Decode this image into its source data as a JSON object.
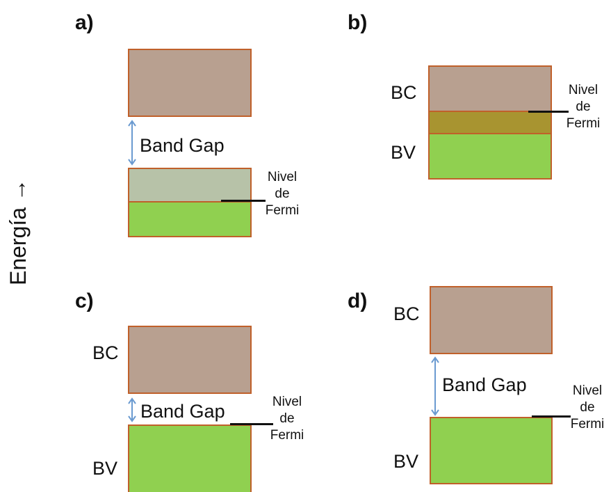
{
  "axis": {
    "label": "Energía →"
  },
  "panels": {
    "a": {
      "label": "a)",
      "band_gap": "Band Gap",
      "fermi": [
        "Nivel",
        "de",
        "Fermi"
      ]
    },
    "b": {
      "label": "b)",
      "bc": "BC",
      "bv": "BV",
      "fermi": [
        "Nivel",
        "de",
        "Fermi"
      ]
    },
    "c": {
      "label": "c)",
      "bc": "BC",
      "bv": "BV",
      "band_gap": "Band Gap",
      "fermi": [
        "Nivel",
        "de",
        "Fermi"
      ]
    },
    "d": {
      "label": "d)",
      "bc": "BC",
      "bv": "BV",
      "band_gap": "Band Gap",
      "fermi": [
        "Nivel",
        "de",
        "Fermi"
      ]
    }
  },
  "colors": {
    "conduction_band": "#b8a090",
    "valence_band": "#90d050",
    "band_border": "#c0602a",
    "partial_fill_a": "#b7c2a8",
    "overlap_b": "#a89430",
    "gap_arrow": "#6a9ad0",
    "fermi_line": "#111111"
  }
}
